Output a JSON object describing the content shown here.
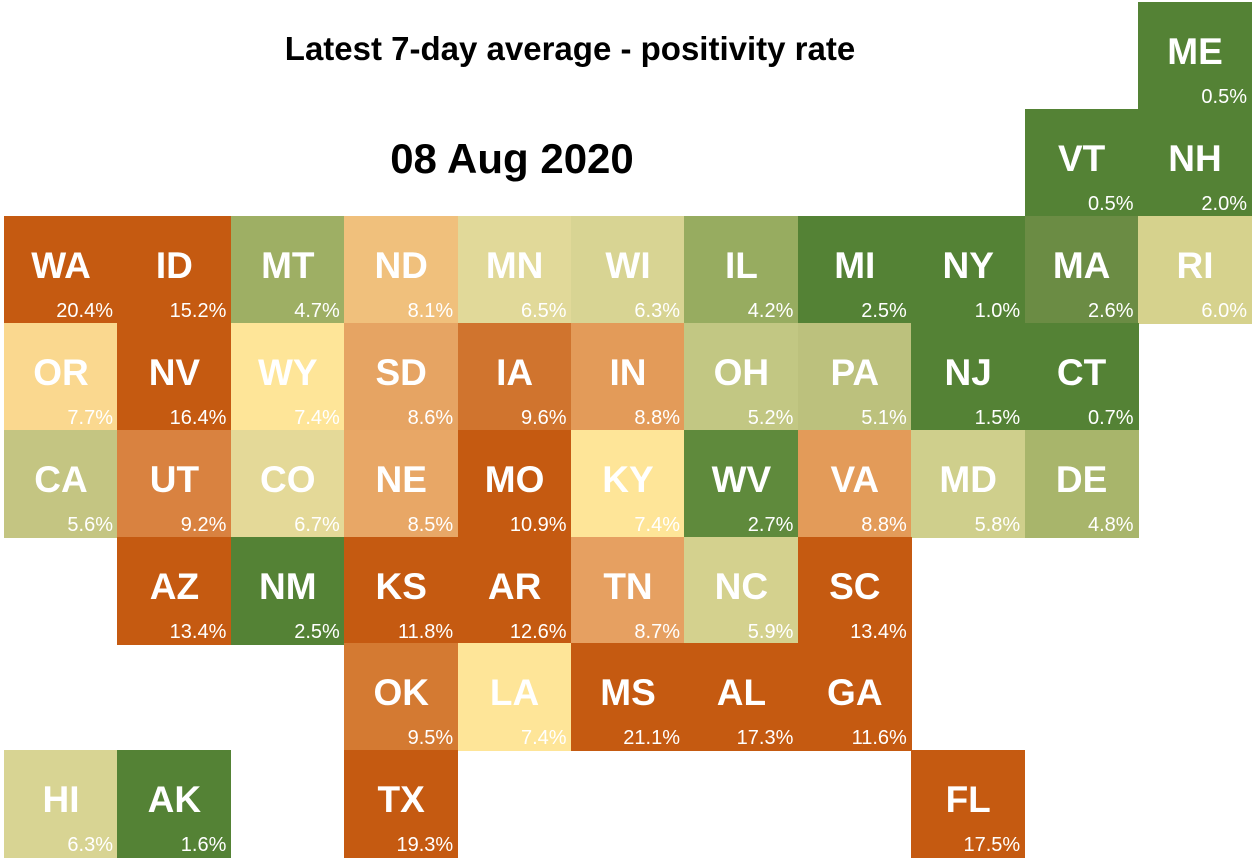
{
  "title": "Latest 7-day average - positivity rate",
  "date": "08 Aug 2020",
  "tiles": [
    {
      "abbr": "ME",
      "value": "0.5%",
      "color": "#548235"
    },
    {
      "abbr": "VT",
      "value": "0.5%",
      "color": "#548235"
    },
    {
      "abbr": "NH",
      "value": "2.0%",
      "color": "#548235"
    },
    {
      "abbr": "WA",
      "value": "20.4%",
      "color": "#c55a11"
    },
    {
      "abbr": "ID",
      "value": "15.2%",
      "color": "#c55a11"
    },
    {
      "abbr": "MT",
      "value": "4.7%",
      "color": "#9eaf64"
    },
    {
      "abbr": "ND",
      "value": "8.1%",
      "color": "#f0c07c"
    },
    {
      "abbr": "MN",
      "value": "6.5%",
      "color": "#e1d999"
    },
    {
      "abbr": "WI",
      "value": "6.3%",
      "color": "#d8d493"
    },
    {
      "abbr": "IL",
      "value": "4.2%",
      "color": "#97ac60"
    },
    {
      "abbr": "MI",
      "value": "2.5%",
      "color": "#548235"
    },
    {
      "abbr": "NY",
      "value": "1.0%",
      "color": "#548235"
    },
    {
      "abbr": "MA",
      "value": "2.6%",
      "color": "#6b8c44"
    },
    {
      "abbr": "RI",
      "value": "6.0%",
      "color": "#d6d28d"
    },
    {
      "abbr": "OR",
      "value": "7.7%",
      "color": "#fad88f"
    },
    {
      "abbr": "NV",
      "value": "16.4%",
      "color": "#c55a11"
    },
    {
      "abbr": "WY",
      "value": "7.4%",
      "color": "#fee598"
    },
    {
      "abbr": "SD",
      "value": "8.6%",
      "color": "#e6a463"
    },
    {
      "abbr": "IA",
      "value": "9.6%",
      "color": "#d0742e"
    },
    {
      "abbr": "IN",
      "value": "8.8%",
      "color": "#e39b59"
    },
    {
      "abbr": "OH",
      "value": "5.2%",
      "color": "#c2c783"
    },
    {
      "abbr": "PA",
      "value": "5.1%",
      "color": "#bcc17d"
    },
    {
      "abbr": "NJ",
      "value": "1.5%",
      "color": "#548235"
    },
    {
      "abbr": "CT",
      "value": "0.7%",
      "color": "#548235"
    },
    {
      "abbr": "CA",
      "value": "5.6%",
      "color": "#c4c582"
    },
    {
      "abbr": "UT",
      "value": "9.2%",
      "color": "#d98240"
    },
    {
      "abbr": "CO",
      "value": "6.7%",
      "color": "#e4d998"
    },
    {
      "abbr": "NE",
      "value": "8.5%",
      "color": "#e8a766"
    },
    {
      "abbr": "MO",
      "value": "10.9%",
      "color": "#c55a11"
    },
    {
      "abbr": "KY",
      "value": "7.4%",
      "color": "#fee598"
    },
    {
      "abbr": "WV",
      "value": "2.7%",
      "color": "#5f8a3c"
    },
    {
      "abbr": "VA",
      "value": "8.8%",
      "color": "#e39b59"
    },
    {
      "abbr": "MD",
      "value": "5.8%",
      "color": "#cfcf8c"
    },
    {
      "abbr": "DE",
      "value": "4.8%",
      "color": "#a8b56b"
    },
    {
      "abbr": "AZ",
      "value": "13.4%",
      "color": "#c55a11"
    },
    {
      "abbr": "NM",
      "value": "2.5%",
      "color": "#548235"
    },
    {
      "abbr": "KS",
      "value": "11.8%",
      "color": "#c55a11"
    },
    {
      "abbr": "AR",
      "value": "12.6%",
      "color": "#c55a11"
    },
    {
      "abbr": "TN",
      "value": "8.7%",
      "color": "#e6a061"
    },
    {
      "abbr": "NC",
      "value": "5.9%",
      "color": "#d4d18e"
    },
    {
      "abbr": "SC",
      "value": "13.4%",
      "color": "#c55a11"
    },
    {
      "abbr": "OK",
      "value": "9.5%",
      "color": "#d47a32"
    },
    {
      "abbr": "LA",
      "value": "7.4%",
      "color": "#fee598"
    },
    {
      "abbr": "MS",
      "value": "21.1%",
      "color": "#c55a11"
    },
    {
      "abbr": "AL",
      "value": "17.3%",
      "color": "#c55a11"
    },
    {
      "abbr": "GA",
      "value": "11.6%",
      "color": "#c55a11"
    },
    {
      "abbr": "HI",
      "value": "6.3%",
      "color": "#d8d493"
    },
    {
      "abbr": "AK",
      "value": "1.6%",
      "color": "#548235"
    },
    {
      "abbr": "TX",
      "value": "19.3%",
      "color": "#c55a11"
    },
    {
      "abbr": "FL",
      "value": "17.5%",
      "color": "#c55a11"
    }
  ]
}
